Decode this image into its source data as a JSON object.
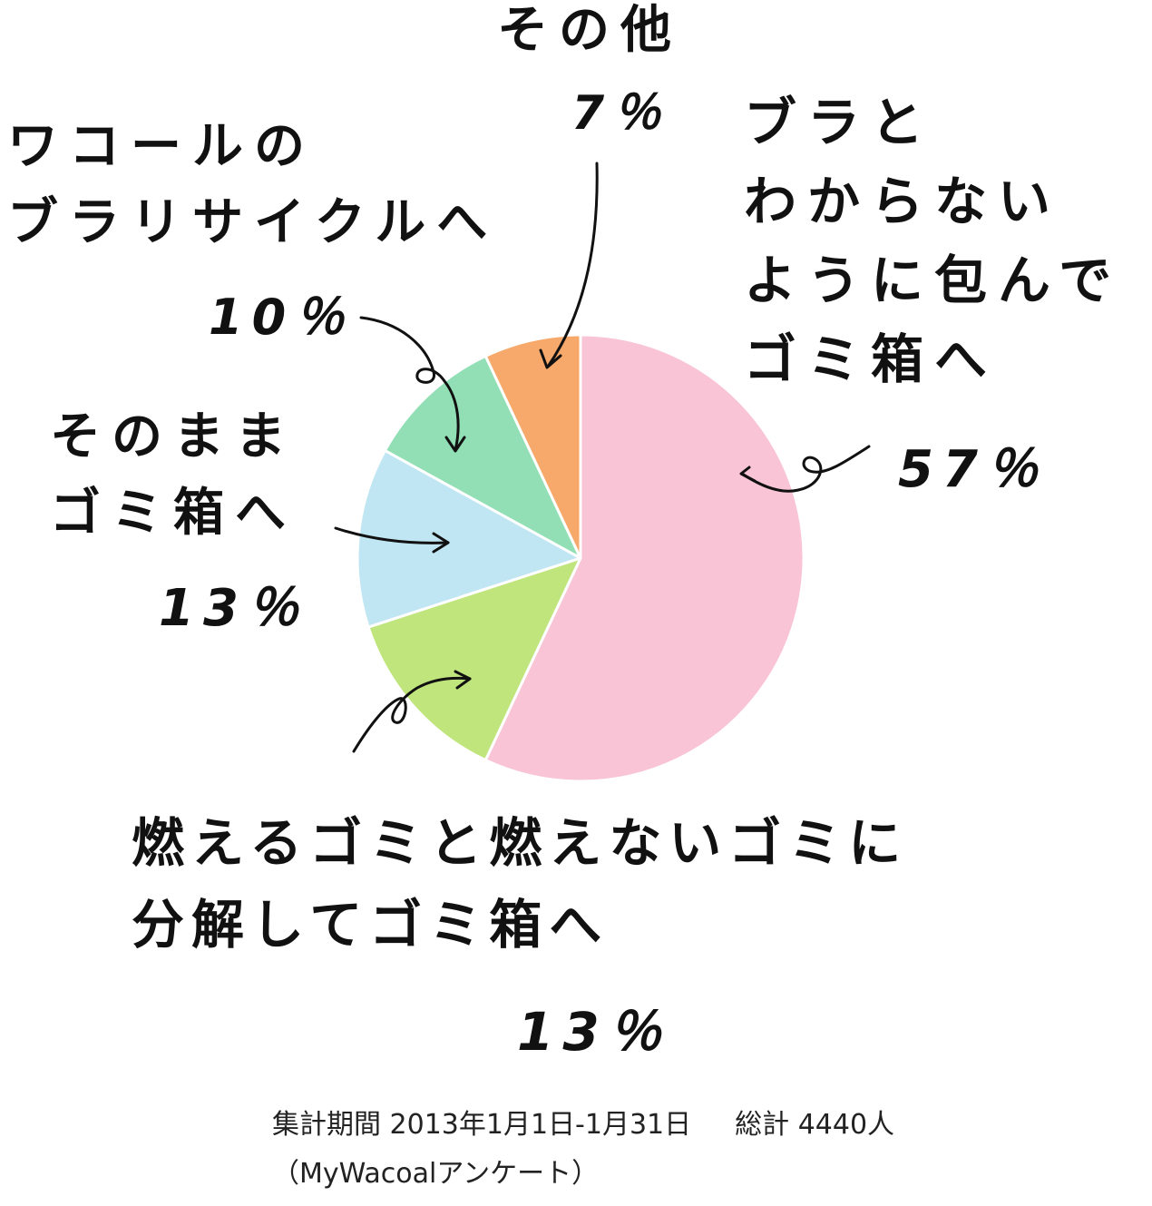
{
  "chart_data": {
    "type": "pie",
    "slices": [
      {
        "label": "ブラとわからないように包んでゴミ箱へ",
        "value": 57,
        "value_label": "57％",
        "color": "#f9c4d6"
      },
      {
        "label": "燃えるゴミと燃えないゴミに分解してゴミ箱へ",
        "value": 13,
        "value_label": "13％",
        "color": "#bfe57c"
      },
      {
        "label": "そのままゴミ箱へ",
        "value": 13,
        "value_label": "13％",
        "color": "#c0e6f4"
      },
      {
        "label": "ワコールのブラリサイクルへ",
        "value": 10,
        "value_label": "10％",
        "color": "#92dfb6"
      },
      {
        "label": "その他",
        "value": 7,
        "value_label": "7％",
        "color": "#f6a96a"
      }
    ],
    "start_angle_deg": 0,
    "direction": "clockwise",
    "legend": "none"
  },
  "labels": {
    "sonota": {
      "lines": [
        "その他"
      ],
      "pct": "7％"
    },
    "wrap": {
      "lines": [
        "ブラと",
        "わからない",
        "ように包んで",
        "ゴミ箱へ"
      ],
      "pct": "57％"
    },
    "recycle": {
      "lines": [
        "ワコールの",
        "ブラリサイクルへ"
      ],
      "pct": "10％"
    },
    "asis": {
      "lines": [
        "そのまま",
        "ゴミ箱へ"
      ],
      "pct": "13％"
    },
    "separate": {
      "lines": [
        "燃えるゴミと燃えないゴミに",
        "分解してゴミ箱へ"
      ],
      "pct": "13％"
    }
  },
  "footnote": {
    "period": "集計期間 2013年1月1日-1月31日",
    "total": "総計 4440人",
    "source": "（MyWacoalアンケート）"
  }
}
